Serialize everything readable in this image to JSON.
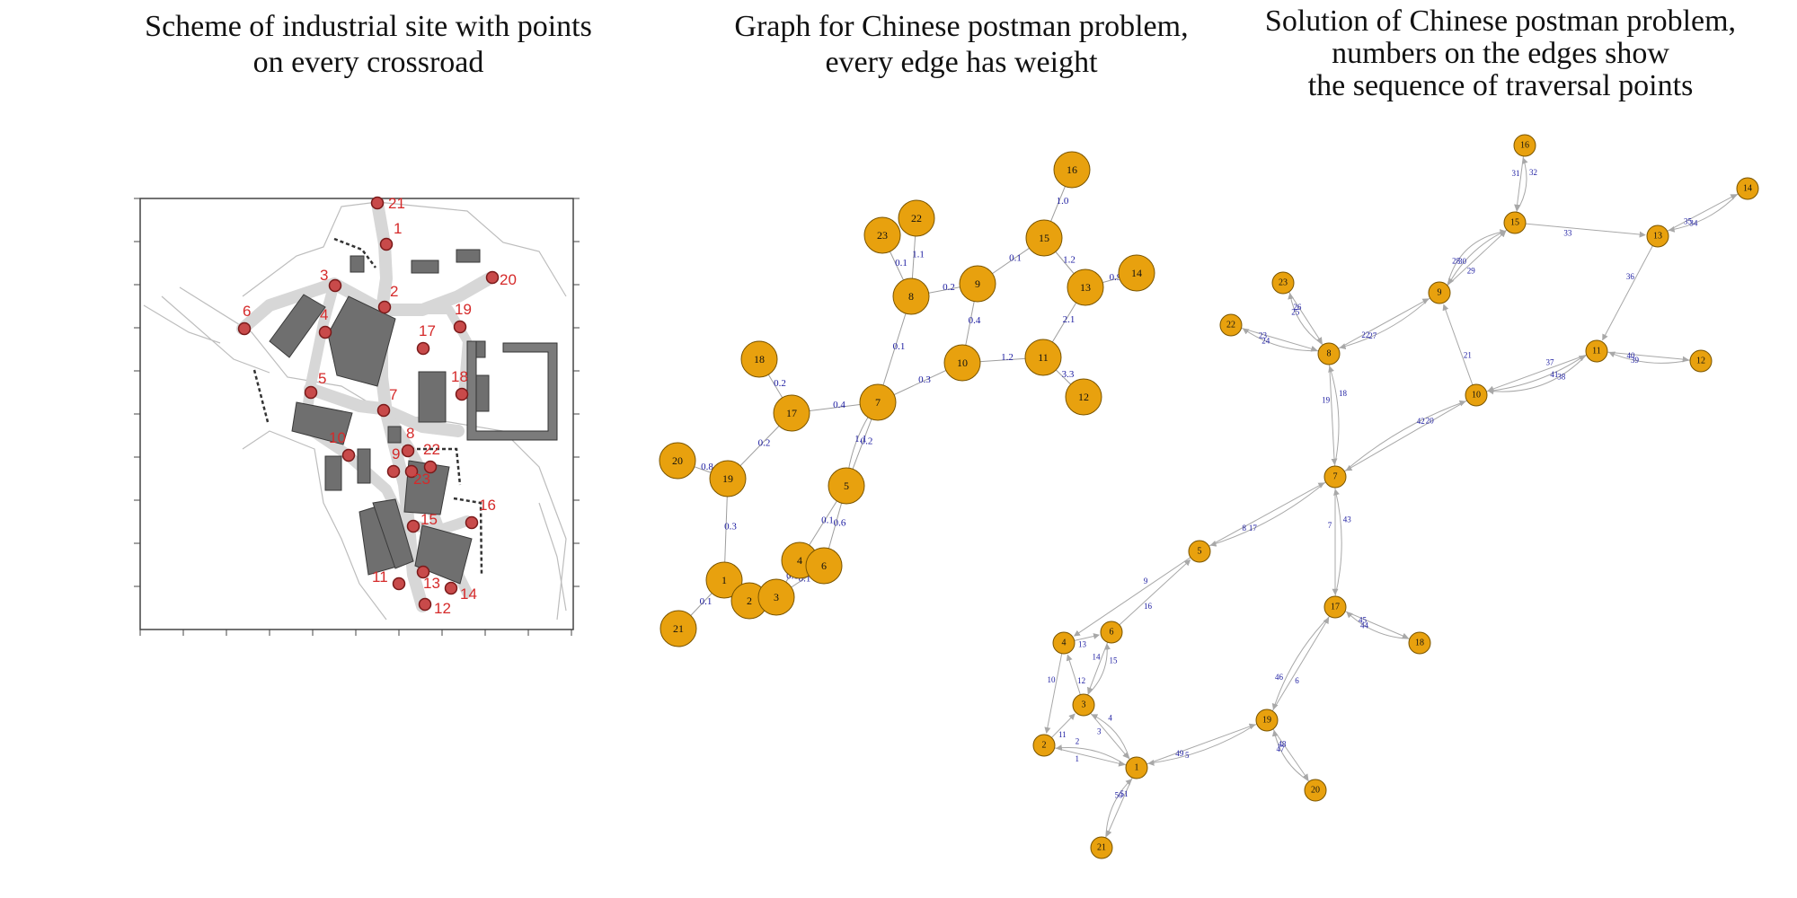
{
  "titles": {
    "panel1": [
      "Scheme of industrial site with points",
      "on every crossroad"
    ],
    "panel2": [
      "Graph for Chinese postman problem,",
      "every edge has weight"
    ],
    "panel3": [
      "Solution of Chinese postman problem,",
      "numbers on the edges show",
      "the sequence of traversal points"
    ]
  },
  "colors": {
    "node_fill": "#E8A10E",
    "edge_label": "#1a1aa0",
    "map_point": "#c84a4a",
    "map_label": "#d52a2a",
    "building": "#6f6f6f",
    "road": "#d7d7d7"
  },
  "map_points": [
    {
      "id": "21"
    },
    {
      "id": "1"
    },
    {
      "id": "3"
    },
    {
      "id": "2"
    },
    {
      "id": "20"
    },
    {
      "id": "6"
    },
    {
      "id": "4"
    },
    {
      "id": "17"
    },
    {
      "id": "19"
    },
    {
      "id": "5"
    },
    {
      "id": "18"
    },
    {
      "id": "7"
    },
    {
      "id": "10"
    },
    {
      "id": "8"
    },
    {
      "id": "22"
    },
    {
      "id": "9"
    },
    {
      "id": "23"
    },
    {
      "id": "16"
    },
    {
      "id": "15"
    },
    {
      "id": "11"
    },
    {
      "id": "13"
    },
    {
      "id": "14"
    },
    {
      "id": "12"
    }
  ],
  "graph_weighted": {
    "edges": [
      {
        "a": "16",
        "b": "15",
        "w": "1.0"
      },
      {
        "a": "15",
        "b": "9",
        "w": "0.1"
      },
      {
        "a": "15",
        "b": "13",
        "w": "1.2"
      },
      {
        "a": "13",
        "b": "14",
        "w": "0.9"
      },
      {
        "a": "13",
        "b": "11",
        "w": "2.1"
      },
      {
        "a": "11",
        "b": "12",
        "w": "3.3"
      },
      {
        "a": "11",
        "b": "10",
        "w": "1.2"
      },
      {
        "a": "22",
        "b": "8",
        "w": "1.1"
      },
      {
        "a": "23",
        "b": "8",
        "w": "0.1"
      },
      {
        "a": "8",
        "b": "9",
        "w": "0.2"
      },
      {
        "a": "9",
        "b": "10",
        "w": "0.4"
      },
      {
        "a": "8",
        "b": "7",
        "w": "0.1"
      },
      {
        "a": "10",
        "b": "7",
        "w": "0.3"
      },
      {
        "a": "18",
        "b": "17",
        "w": "0.2"
      },
      {
        "a": "17",
        "b": "7",
        "w": "0.4"
      },
      {
        "a": "17",
        "b": "19",
        "w": "0.2"
      },
      {
        "a": "20",
        "b": "19",
        "w": "0.8"
      },
      {
        "a": "19",
        "b": "1",
        "w": "0.3"
      },
      {
        "a": "7",
        "b": "5",
        "w": "0.2"
      },
      {
        "a": "7",
        "b": "5",
        "w": "1.1"
      },
      {
        "a": "5",
        "b": "4",
        "w": "0.1"
      },
      {
        "a": "5",
        "b": "6",
        "w": "0.6"
      },
      {
        "a": "1",
        "b": "21",
        "w": "0.1"
      },
      {
        "a": "1",
        "b": "2",
        "w": ""
      },
      {
        "a": "2",
        "b": "3",
        "w": ""
      },
      {
        "a": "4",
        "b": "3",
        "w": "0.1"
      },
      {
        "a": "3",
        "b": "6",
        "w": "0.1"
      },
      {
        "a": "4",
        "b": "6",
        "w": "0.1"
      }
    ]
  },
  "graph_solution": {
    "edges": [
      {
        "a": "16",
        "b": "15",
        "seq": "31"
      },
      {
        "a": "15",
        "b": "16",
        "seq": "32"
      },
      {
        "a": "15",
        "b": "13",
        "seq": "33"
      },
      {
        "a": "13",
        "b": "14",
        "seq": "34"
      },
      {
        "a": "14",
        "b": "13",
        "seq": "35"
      },
      {
        "a": "13",
        "b": "11",
        "seq": "36"
      },
      {
        "a": "11",
        "b": "10",
        "seq": "37"
      },
      {
        "a": "10",
        "b": "11",
        "seq": "38"
      },
      {
        "a": "11",
        "b": "12",
        "seq": "39"
      },
      {
        "a": "12",
        "b": "11",
        "seq": "40"
      },
      {
        "a": "11",
        "b": "10",
        "seq": "41"
      },
      {
        "a": "10",
        "b": "7",
        "seq": "42"
      },
      {
        "a": "9",
        "b": "15",
        "seq": "29"
      },
      {
        "a": "15",
        "b": "9",
        "seq": "28"
      },
      {
        "a": "9",
        "b": "15",
        "seq": "30"
      },
      {
        "a": "8",
        "b": "9",
        "seq": "27"
      },
      {
        "a": "9",
        "b": "8",
        "seq": "22"
      },
      {
        "a": "10",
        "b": "9",
        "seq": "21"
      },
      {
        "a": "7",
        "b": "10",
        "seq": "20"
      },
      {
        "a": "8",
        "b": "7",
        "seq": "19"
      },
      {
        "a": "7",
        "b": "8",
        "seq": "18"
      },
      {
        "a": "23",
        "b": "8",
        "seq": "25"
      },
      {
        "a": "8",
        "b": "23",
        "seq": "26"
      },
      {
        "a": "22",
        "b": "8",
        "seq": "24"
      },
      {
        "a": "8",
        "b": "22",
        "seq": "23"
      },
      {
        "a": "5",
        "b": "7",
        "seq": "17"
      },
      {
        "a": "7",
        "b": "5",
        "seq": "8"
      },
      {
        "a": "6",
        "b": "5",
        "seq": "16"
      },
      {
        "a": "5",
        "b": "4",
        "seq": "9"
      },
      {
        "a": "7",
        "b": "17",
        "seq": "7"
      },
      {
        "a": "17",
        "b": "7",
        "seq": "43"
      },
      {
        "a": "17",
        "b": "18",
        "seq": "44"
      },
      {
        "a": "18",
        "b": "17",
        "seq": "45"
      },
      {
        "a": "19",
        "b": "17",
        "seq": "6"
      },
      {
        "a": "17",
        "b": "19",
        "seq": "46"
      },
      {
        "a": "19",
        "b": "20",
        "seq": "47"
      },
      {
        "a": "20",
        "b": "19",
        "seq": "48"
      },
      {
        "a": "1",
        "b": "19",
        "seq": "5"
      },
      {
        "a": "19",
        "b": "1",
        "seq": "49"
      },
      {
        "a": "1",
        "b": "21",
        "seq": "50"
      },
      {
        "a": "21",
        "b": "1",
        "seq": "51"
      },
      {
        "a": "2",
        "b": "1",
        "seq": "1"
      },
      {
        "a": "1",
        "b": "2",
        "seq": "2"
      },
      {
        "a": "3",
        "b": "1",
        "seq": "3"
      },
      {
        "a": "1",
        "b": "3",
        "seq": "4"
      },
      {
        "a": "4",
        "b": "2",
        "seq": "10"
      },
      {
        "a": "2",
        "b": "3",
        "seq": "11"
      },
      {
        "a": "3",
        "b": "4",
        "seq": "12"
      },
      {
        "a": "4",
        "b": "6",
        "seq": "13"
      },
      {
        "a": "6",
        "b": "3",
        "seq": "14"
      },
      {
        "a": "3",
        "b": "6",
        "seq": "15"
      }
    ]
  }
}
